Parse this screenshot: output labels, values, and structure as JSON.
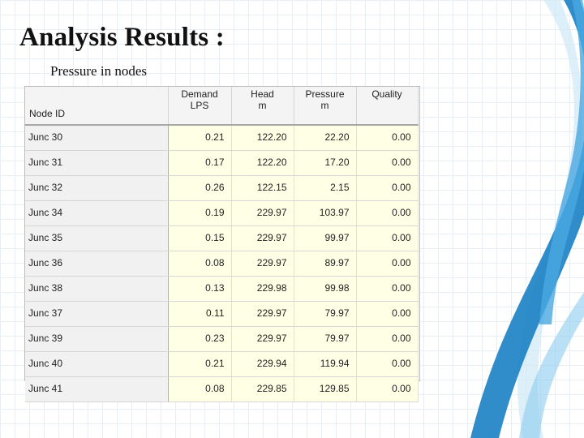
{
  "slide": {
    "title": "Analysis Results :",
    "subtitle": "Pressure in nodes"
  },
  "table": {
    "columns": [
      {
        "line1": "",
        "line2": "Node ID"
      },
      {
        "line1": "Demand",
        "line2": "LPS"
      },
      {
        "line1": "Head",
        "line2": "m"
      },
      {
        "line1": "Pressure",
        "line2": "m"
      },
      {
        "line1": "Quality",
        "line2": ""
      }
    ],
    "rows": [
      [
        "Junc 30",
        "0.21",
        "122.20",
        "22.20",
        "0.00"
      ],
      [
        "Junc 31",
        "0.17",
        "122.20",
        "17.20",
        "0.00"
      ],
      [
        "Junc 32",
        "0.26",
        "122.15",
        "2.15",
        "0.00"
      ],
      [
        "Junc 34",
        "0.19",
        "229.97",
        "103.97",
        "0.00"
      ],
      [
        "Junc 35",
        "0.15",
        "229.97",
        "99.97",
        "0.00"
      ],
      [
        "Junc 36",
        "0.08",
        "229.97",
        "89.97",
        "0.00"
      ],
      [
        "Junc 38",
        "0.13",
        "229.98",
        "99.98",
        "0.00"
      ],
      [
        "Junc 37",
        "0.11",
        "229.97",
        "79.97",
        "0.00"
      ],
      [
        "Junc 39",
        "0.23",
        "229.97",
        "79.97",
        "0.00"
      ],
      [
        "Junc 40",
        "0.21",
        "229.94",
        "119.94",
        "0.00"
      ],
      [
        "Junc 41",
        "0.08",
        "229.85",
        "129.85",
        "0.00"
      ]
    ]
  },
  "colors": {
    "value_cell_bg": "#ffffe6",
    "id_cell_bg": "#f1f1f1",
    "header_bg": "#f4f4f4",
    "swoosh_dark": "#1b7fc4",
    "swoosh_light": "#8ccbee"
  }
}
